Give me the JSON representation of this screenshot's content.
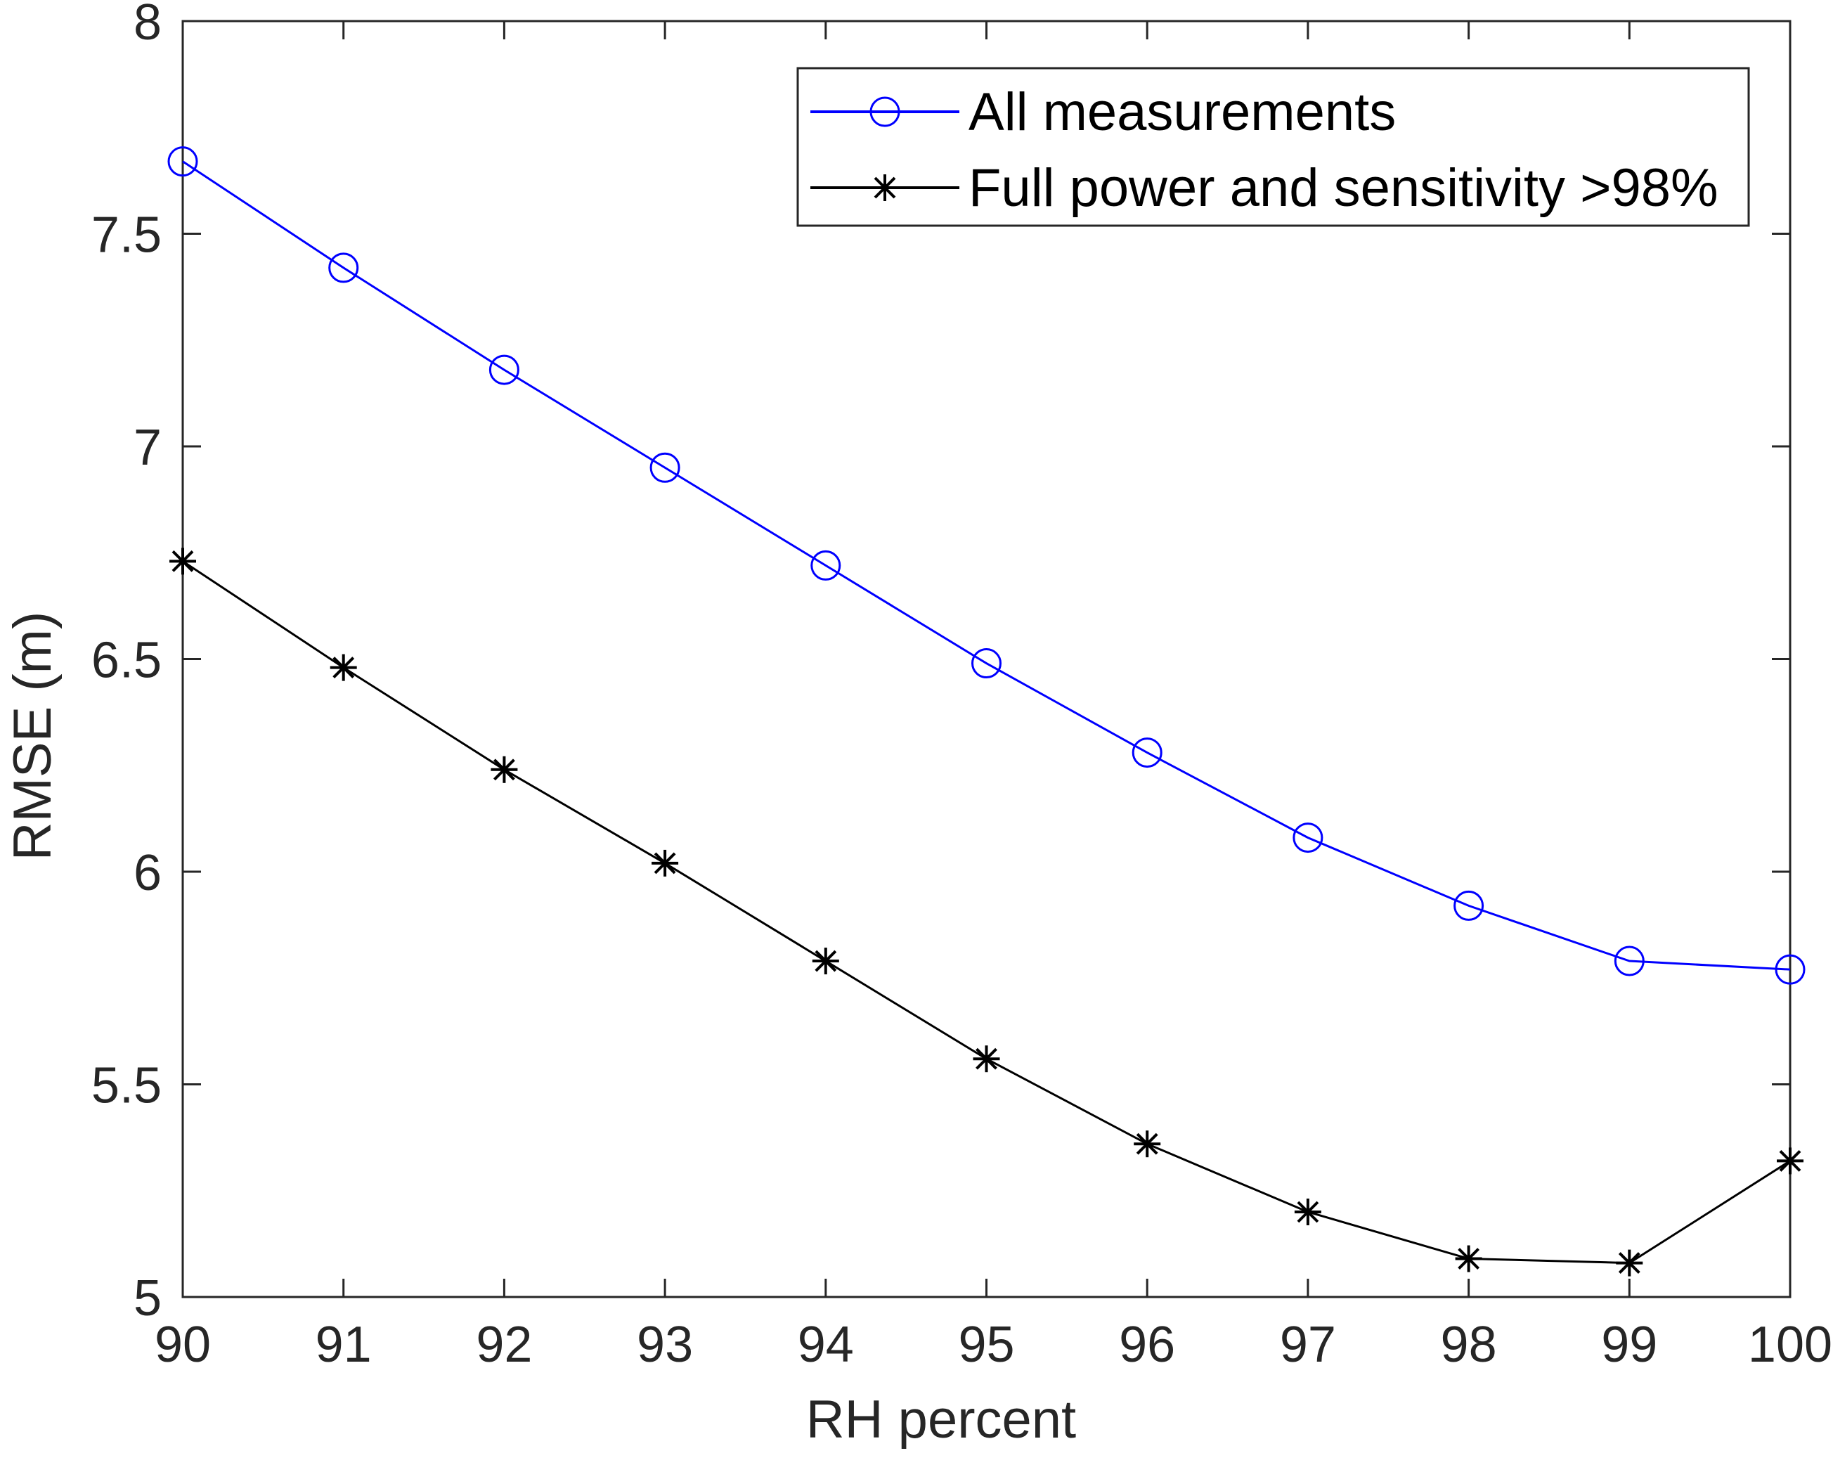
{
  "chart_data": {
    "type": "line",
    "title": "",
    "xlabel": "RH percent",
    "ylabel": "RMSE (m)",
    "xlim": [
      90,
      100
    ],
    "ylim": [
      5,
      8
    ],
    "x": [
      90,
      91,
      92,
      93,
      94,
      95,
      96,
      97,
      98,
      99,
      100
    ],
    "x_tick_labels": [
      "90",
      "91",
      "92",
      "93",
      "94",
      "95",
      "96",
      "97",
      "98",
      "99",
      "100"
    ],
    "y_ticks": [
      5,
      5.5,
      6,
      6.5,
      7,
      7.5,
      8
    ],
    "y_tick_labels": [
      "5",
      "5.5",
      "6",
      "6.5",
      "7",
      "7.5",
      "8"
    ],
    "grid": false,
    "legend_position": "top-right",
    "series": [
      {
        "name": "All measurements",
        "color": "#0000ff",
        "marker": "circle",
        "values": [
          7.67,
          7.42,
          7.18,
          6.95,
          6.72,
          6.49,
          6.28,
          6.08,
          5.92,
          5.79,
          5.77
        ]
      },
      {
        "name": "Full power and sensitivity >98%",
        "color": "#000000",
        "marker": "asterisk",
        "values": [
          6.73,
          6.48,
          6.24,
          6.02,
          5.79,
          5.56,
          5.36,
          5.2,
          5.09,
          5.08,
          5.32
        ]
      }
    ]
  }
}
